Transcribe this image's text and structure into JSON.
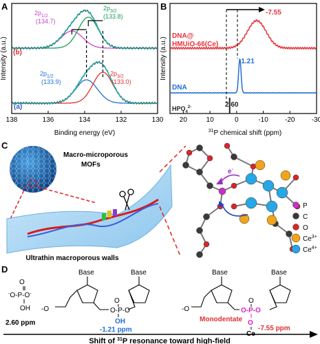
{
  "panels": {
    "A": {
      "letter": "A",
      "xlabel": "Binding energy (eV)",
      "ylabel": "Intensity (a.u.)",
      "ticks": [
        "138",
        "136",
        "134",
        "132",
        "130"
      ],
      "top_label": "(b)",
      "bottom_label": "(a)",
      "peaks_b": [
        {
          "name": "2p",
          "sub": "1/2",
          "value": "(134.7)",
          "color": "#cc44cc"
        },
        {
          "name": "2p",
          "sub": "3/2",
          "value": "(133.8)",
          "color": "#1a9a5a"
        }
      ],
      "peaks_a": [
        {
          "name": "2p",
          "sub": "1/2",
          "value": "(133.9)",
          "color": "#1f6fd1"
        },
        {
          "name": "2p",
          "sub": "3/2",
          "value": "(133.0)",
          "color": "#e03030"
        }
      ]
    },
    "B": {
      "letter": "B",
      "xlabel_pre": "31",
      "xlabel": "P chemical shift (ppm)",
      "ylabel": "Intensity (a.u.)",
      "ticks": [
        "20",
        "10",
        "0",
        "-10",
        "-20",
        "-30"
      ],
      "traces": [
        {
          "label_line1": "DNA@",
          "label_line2": "HMUiO-66(Ce)",
          "value": "-7.55",
          "color": "#e8323a"
        },
        {
          "label_line1": "DNA",
          "value": "-1.21",
          "color": "#1f6fd1"
        },
        {
          "label_line1": "HPO",
          "value": "2.60",
          "color": "#222222"
        }
      ]
    },
    "C": {
      "letter": "C",
      "title1": "Macro-microporous",
      "title2": "MOFs",
      "walls": "Ultrathin macroporous walls",
      "electron": "e",
      "legend": [
        {
          "label": "P",
          "color": "#c930c9"
        },
        {
          "label": "C",
          "color": "#3a3a3a"
        },
        {
          "label": "O",
          "color": "#d8262a"
        },
        {
          "label": "Ce3+",
          "color": "#f2a41b"
        },
        {
          "label": "Ce4+",
          "color": "#27a7e6"
        }
      ]
    },
    "D": {
      "letter": "D",
      "base": "Base",
      "ppm1": "2.60 ppm",
      "ppm2": "-1.21 ppm",
      "ppm3": "-7.55 ppm",
      "mono": "Monodentate",
      "arrow_text_pre": "Shift of ",
      "arrow_sup": "31",
      "arrow_text_post": "P resonance toward high-field"
    }
  },
  "chart_data": [
    {
      "type": "line",
      "panel": "A",
      "xlabel": "Binding energy (eV)",
      "ylabel": "Intensity (a.u.)",
      "xlim": [
        138,
        130
      ],
      "series": [
        {
          "name": "(b)",
          "peaks_eV": [
            134.7,
            133.8
          ]
        },
        {
          "name": "(a)",
          "peaks_eV": [
            133.9,
            133.0
          ]
        }
      ]
    },
    {
      "type": "line",
      "panel": "B",
      "xlabel": "31P chemical shift (ppm)",
      "ylabel": "Intensity (a.u.)",
      "xlim": [
        25,
        -30
      ],
      "series": [
        {
          "name": "DNA@HMUiO-66(Ce)",
          "peak_ppm": -7.55
        },
        {
          "name": "DNA",
          "peak_ppm": -1.21
        },
        {
          "name": "HPO4 2-",
          "peak_ppm": 2.6
        }
      ]
    }
  ]
}
